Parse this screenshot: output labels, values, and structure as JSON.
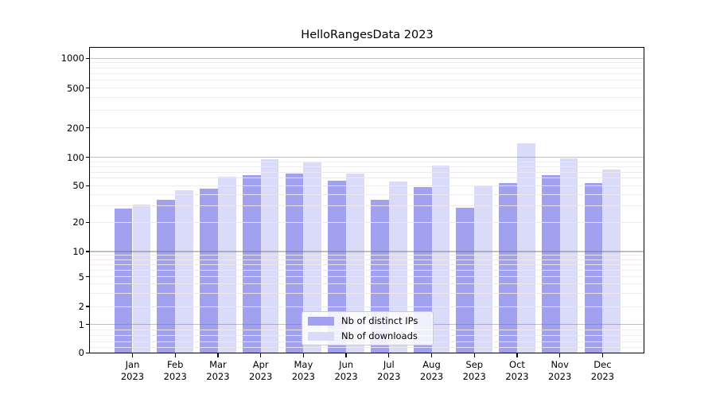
{
  "title": "HelloRangesData 2023",
  "colors": {
    "ips": "#a1a1f0",
    "downloads": "#dadaf9",
    "grid_major": "rgba(115,115,115,0.45)",
    "grid_minor": "rgba(238,232,232,0.9)",
    "spine": "#000000"
  },
  "legend": {
    "items": [
      {
        "label": "Nb of distinct IPs",
        "color_key": "ips"
      },
      {
        "label": "Nb of downloads",
        "color_key": "downloads"
      }
    ]
  },
  "y_axis": {
    "tick_labels": [
      "1000",
      "500",
      "200",
      "100",
      "50",
      "20",
      "10",
      "5",
      "2",
      "1",
      "0"
    ]
  },
  "x_axis": {
    "year": "2023",
    "months": [
      "Jan",
      "Feb",
      "Mar",
      "Apr",
      "May",
      "Jun",
      "Jul",
      "Aug",
      "Sep",
      "Oct",
      "Nov",
      "Dec"
    ]
  },
  "chart_data": {
    "type": "bar",
    "title": "HelloRangesData 2023",
    "categories": [
      "Jan 2023",
      "Feb 2023",
      "Mar 2023",
      "Apr 2023",
      "May 2023",
      "Jun 2023",
      "Jul 2023",
      "Aug 2023",
      "Sep 2023",
      "Oct 2023",
      "Nov 2023",
      "Dec 2023"
    ],
    "series": [
      {
        "name": "Nb of distinct IPs",
        "values": [
          28,
          35,
          46,
          65,
          67,
          57,
          35,
          48,
          29,
          53,
          65,
          53
        ]
      },
      {
        "name": "Nb of downloads",
        "values": [
          31,
          45,
          62,
          95,
          88,
          67,
          55,
          82,
          50,
          140,
          98,
          74
        ]
      }
    ],
    "yscale": "symlog",
    "y_ticks": [
      0,
      1,
      2,
      5,
      10,
      20,
      50,
      100,
      200,
      500,
      1000
    ],
    "ylim": [
      0,
      1300
    ],
    "grid": true,
    "legend_position": "lower center"
  }
}
